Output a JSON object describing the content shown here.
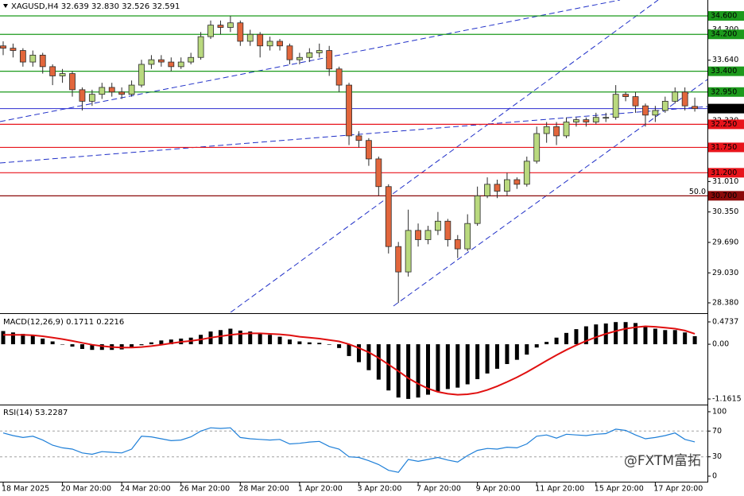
{
  "chart_data": [
    {
      "type": "candlestick",
      "header": "XAGUSD,H4  32.639 32.830 32.526 32.591",
      "up_color": "#b9d97e",
      "down_color": "#e2663c",
      "outline_color": "#2b2b2b",
      "ylim": [
        28.173,
        34.945
      ],
      "yticks": [
        {
          "value": 34.3,
          "label": "34.300"
        },
        {
          "value": 33.64,
          "label": "33.640"
        },
        {
          "value": 32.33,
          "label": "32.330"
        },
        {
          "value": 31.01,
          "label": "31.010"
        },
        {
          "value": 30.35,
          "label": "30.350"
        },
        {
          "value": 29.69,
          "label": "29.690"
        },
        {
          "value": 29.03,
          "label": "29.030"
        },
        {
          "value": 28.38,
          "label": "28.380"
        }
      ],
      "levels": [
        {
          "value": 34.6,
          "label": "34.600",
          "color": "#1c9a1c"
        },
        {
          "value": 34.2,
          "label": "34.200",
          "color": "#1c9a1c"
        },
        {
          "value": 33.4,
          "label": "33.400",
          "color": "#1c9a1c"
        },
        {
          "value": 32.95,
          "label": "32.950",
          "color": "#1c9a1c"
        },
        {
          "value": 32.25,
          "label": "32.250",
          "color": "#e8141b"
        },
        {
          "value": 31.75,
          "label": "31.750",
          "color": "#e8141b"
        },
        {
          "value": 31.2,
          "label": "31.200",
          "color": "#e8141b"
        },
        {
          "value": 30.7,
          "label": "30.700",
          "color": "#8b0a0a",
          "note": "50.0"
        }
      ],
      "last_price_color": "#2b2bd0",
      "categories": [
        "18 Mar 2025",
        null,
        null,
        null,
        null,
        null,
        "20 Mar 20:00",
        null,
        null,
        null,
        null,
        null,
        "24 Mar 20:00",
        null,
        null,
        null,
        null,
        null,
        "26 Mar 20:00",
        null,
        null,
        null,
        null,
        null,
        "28 Mar 20:00",
        null,
        null,
        null,
        null,
        null,
        "1 Apr 20:00",
        null,
        null,
        null,
        null,
        null,
        "3 Apr 20:00",
        null,
        null,
        null,
        null,
        null,
        "7 Apr 20:00",
        null,
        null,
        null,
        null,
        null,
        "9 Apr 20:00",
        null,
        null,
        null,
        null,
        null,
        "11 Apr 20:00",
        null,
        null,
        null,
        null,
        null,
        "15 Apr 20:00",
        null,
        null,
        null,
        null,
        null,
        "17 Apr 20:00",
        null,
        null,
        null,
        null
      ],
      "open": [
        33.95,
        33.9,
        33.85,
        33.6,
        33.75,
        33.5,
        33.3,
        33.35,
        33.0,
        32.75,
        32.9,
        33.05,
        32.95,
        32.9,
        33.1,
        33.55,
        33.65,
        33.6,
        33.5,
        33.6,
        33.7,
        34.15,
        34.4,
        34.35,
        34.45,
        34.05,
        34.2,
        33.95,
        34.05,
        33.95,
        33.65,
        33.7,
        33.8,
        33.85,
        33.45,
        33.1,
        32.0,
        31.9,
        31.5,
        30.9,
        29.6,
        29.05,
        29.95,
        29.75,
        29.95,
        30.15,
        29.75,
        29.55,
        30.1,
        30.7,
        30.95,
        30.8,
        31.05,
        30.95,
        31.45,
        32.05,
        32.2,
        32.0,
        32.3,
        32.35,
        32.3,
        32.4,
        32.4,
        32.9,
        32.85,
        32.65,
        32.45,
        32.55,
        32.75,
        32.95,
        32.639
      ],
      "high": [
        34.05,
        34.0,
        33.9,
        33.85,
        33.8,
        33.55,
        33.45,
        33.4,
        33.05,
        33.0,
        33.15,
        33.15,
        33.05,
        33.2,
        33.65,
        33.75,
        33.75,
        33.7,
        33.7,
        33.8,
        34.25,
        34.5,
        34.5,
        34.6,
        34.5,
        34.3,
        34.25,
        34.15,
        34.1,
        34.0,
        33.8,
        33.9,
        34.0,
        33.95,
        33.5,
        33.15,
        32.1,
        31.95,
        31.55,
        30.95,
        29.7,
        30.4,
        30.1,
        30.05,
        30.35,
        30.2,
        29.85,
        30.3,
        30.9,
        31.1,
        31.05,
        31.2,
        31.1,
        31.55,
        32.2,
        32.3,
        32.3,
        32.4,
        32.4,
        32.4,
        32.5,
        32.5,
        33.1,
        32.95,
        32.95,
        32.7,
        32.65,
        32.85,
        33.05,
        33.05,
        32.83
      ],
      "low": [
        33.75,
        33.7,
        33.5,
        33.5,
        33.35,
        33.1,
        33.15,
        32.85,
        32.55,
        32.65,
        32.8,
        32.85,
        32.8,
        32.85,
        33.05,
        33.45,
        33.5,
        33.4,
        33.45,
        33.55,
        33.65,
        34.1,
        34.2,
        34.25,
        33.95,
        33.95,
        33.7,
        33.85,
        33.85,
        33.55,
        33.55,
        33.6,
        33.7,
        33.3,
        32.95,
        31.8,
        31.75,
        31.35,
        30.7,
        29.45,
        28.38,
        28.95,
        29.6,
        29.65,
        29.85,
        29.6,
        29.35,
        29.5,
        30.05,
        30.65,
        30.65,
        30.7,
        30.85,
        30.9,
        31.4,
        31.85,
        31.8,
        31.95,
        32.2,
        32.2,
        32.25,
        32.3,
        32.35,
        32.75,
        32.5,
        32.2,
        32.3,
        32.5,
        32.7,
        32.55,
        32.526
      ],
      "close": [
        33.9,
        33.85,
        33.6,
        33.75,
        33.5,
        33.3,
        33.35,
        33.0,
        32.75,
        32.9,
        33.05,
        32.95,
        32.9,
        33.1,
        33.55,
        33.65,
        33.6,
        33.5,
        33.6,
        33.7,
        34.15,
        34.4,
        34.35,
        34.45,
        34.05,
        34.2,
        33.95,
        34.05,
        33.95,
        33.65,
        33.7,
        33.8,
        33.85,
        33.45,
        33.1,
        32.0,
        31.9,
        31.5,
        30.9,
        29.6,
        29.05,
        29.95,
        29.75,
        29.95,
        30.15,
        29.75,
        29.55,
        30.1,
        30.7,
        30.95,
        30.8,
        31.05,
        30.95,
        31.45,
        32.05,
        32.2,
        32.0,
        32.3,
        32.35,
        32.3,
        32.4,
        32.4,
        32.9,
        32.85,
        32.65,
        32.45,
        32.55,
        32.75,
        32.95,
        32.65,
        32.591
      ],
      "watermark": "@FXTM富拓"
    },
    {
      "type": "macd",
      "title": "MACD(12,26,9) 0.1711 0.2216",
      "color": "#000000",
      "signal_color": "#e01010",
      "ylim": [
        -1.263,
        0.625
      ],
      "yticks": [
        0.4737,
        {
          "value": 0,
          "label": "0.00"
        },
        -1.1615
      ],
      "values": [
        0.28,
        0.25,
        0.22,
        0.18,
        0.12,
        0.06,
        0.0,
        -0.05,
        -0.1,
        -0.12,
        -0.12,
        -0.12,
        -0.11,
        -0.08,
        -0.02,
        0.04,
        0.08,
        0.1,
        0.12,
        0.14,
        0.2,
        0.27,
        0.3,
        0.33,
        0.29,
        0.27,
        0.22,
        0.2,
        0.16,
        0.1,
        0.06,
        0.04,
        0.03,
        -0.01,
        -0.08,
        -0.25,
        -0.38,
        -0.55,
        -0.75,
        -0.98,
        -1.13,
        -1.16,
        -1.13,
        -1.07,
        -1.0,
        -0.95,
        -0.92,
        -0.85,
        -0.74,
        -0.62,
        -0.52,
        -0.42,
        -0.33,
        -0.22,
        -0.07,
        0.05,
        0.14,
        0.24,
        0.32,
        0.38,
        0.42,
        0.44,
        0.47,
        0.47,
        0.45,
        0.38,
        0.33,
        0.3,
        0.3,
        0.25,
        0.1711
      ],
      "signal": [
        0.2,
        0.2,
        0.2,
        0.19,
        0.17,
        0.14,
        0.11,
        0.07,
        0.03,
        -0.01,
        -0.04,
        -0.06,
        -0.07,
        -0.07,
        -0.06,
        -0.04,
        -0.01,
        0.02,
        0.05,
        0.07,
        0.1,
        0.14,
        0.17,
        0.2,
        0.22,
        0.23,
        0.23,
        0.22,
        0.21,
        0.19,
        0.16,
        0.14,
        0.12,
        0.09,
        0.06,
        0.0,
        -0.08,
        -0.17,
        -0.29,
        -0.43,
        -0.57,
        -0.72,
        -0.84,
        -0.94,
        -1.01,
        -1.05,
        -1.07,
        -1.06,
        -1.03,
        -0.97,
        -0.89,
        -0.8,
        -0.7,
        -0.59,
        -0.47,
        -0.35,
        -0.23,
        -0.12,
        -0.02,
        0.07,
        0.15,
        0.22,
        0.28,
        0.33,
        0.36,
        0.38,
        0.37,
        0.35,
        0.33,
        0.29,
        0.2216
      ]
    },
    {
      "type": "line",
      "title": "RSI(14) 53.2287",
      "color": "#1e7fd8",
      "ylim": [
        -8.6,
        108.6
      ],
      "yticks": [
        100,
        70,
        30,
        0
      ],
      "levels": [
        70,
        30
      ],
      "values": [
        67,
        63,
        60,
        62,
        56,
        48,
        44,
        42,
        36,
        34,
        38,
        37,
        36,
        42,
        62,
        61,
        58,
        55,
        56,
        61,
        70,
        75,
        74,
        75,
        60,
        58,
        57,
        56,
        57,
        50,
        51,
        53,
        54,
        46,
        42,
        30,
        29,
        24,
        18,
        9,
        6,
        26,
        23,
        26,
        29,
        25,
        22,
        32,
        40,
        43,
        42,
        45,
        44,
        50,
        62,
        64,
        59,
        65,
        64,
        63,
        65,
        66,
        73,
        71,
        64,
        58,
        60,
        63,
        67,
        57,
        53.2287
      ]
    }
  ]
}
